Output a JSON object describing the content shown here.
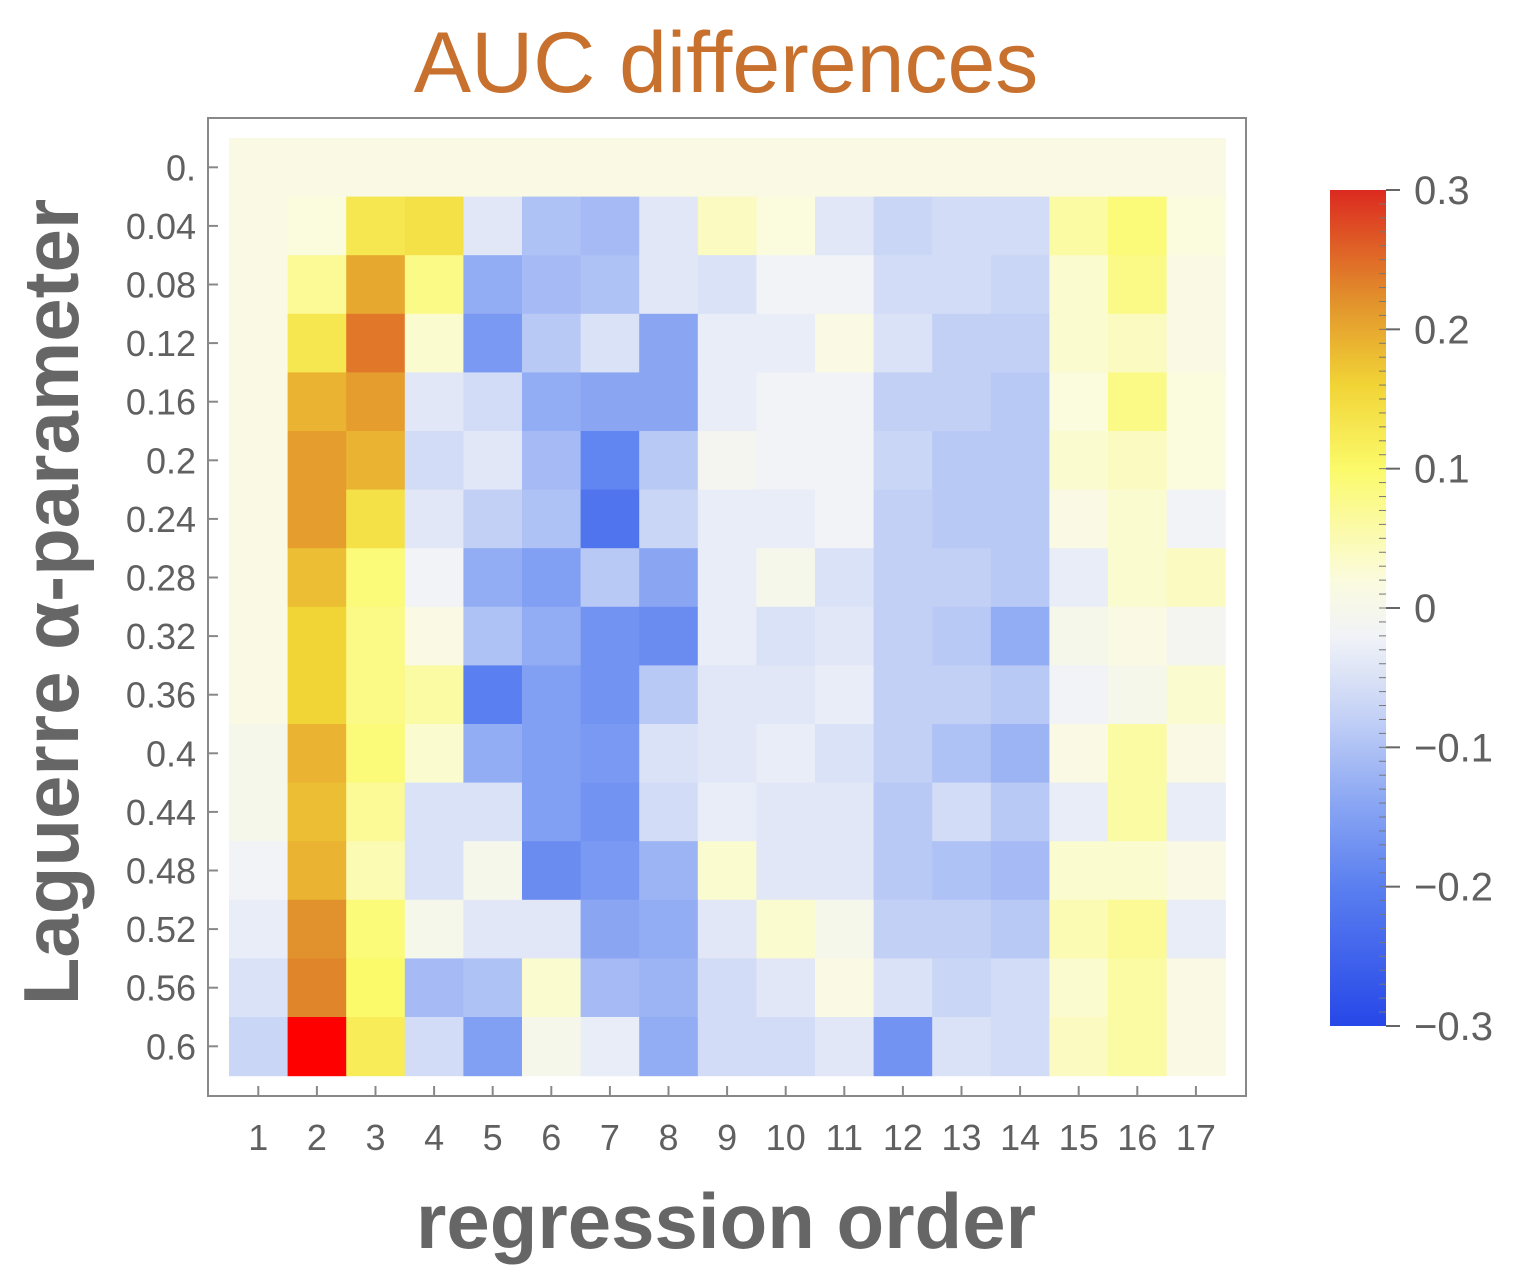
{
  "chart_data": {
    "type": "heatmap",
    "title": "AUC differences",
    "xlabel": "regression order",
    "ylabel": "Laguerre α-parameter",
    "x_categories": [
      "1",
      "2",
      "3",
      "4",
      "5",
      "6",
      "7",
      "8",
      "9",
      "10",
      "11",
      "12",
      "13",
      "14",
      "15",
      "16",
      "17"
    ],
    "y_categories": [
      "0.",
      "0.04",
      "0.08",
      "0.12",
      "0.16",
      "0.2",
      "0.24",
      "0.28",
      "0.32",
      "0.36",
      "0.4",
      "0.44",
      "0.48",
      "0.52",
      "0.56",
      "0.6"
    ],
    "values": [
      [
        0.01,
        0.01,
        0.01,
        0.01,
        0.01,
        0.01,
        0.01,
        0.01,
        0.01,
        0.01,
        0.01,
        0.01,
        0.01,
        0.01,
        0.01,
        0.01,
        0.01
      ],
      [
        0.01,
        0.02,
        0.13,
        0.14,
        -0.04,
        -0.1,
        -0.11,
        -0.04,
        0.04,
        0.02,
        -0.04,
        -0.07,
        -0.06,
        -0.06,
        0.06,
        0.09,
        0.02
      ],
      [
        0.01,
        0.07,
        0.2,
        0.08,
        -0.13,
        -0.11,
        -0.1,
        -0.04,
        -0.05,
        -0.02,
        -0.02,
        -0.06,
        -0.06,
        -0.07,
        0.03,
        0.08,
        0.01
      ],
      [
        0.01,
        0.13,
        0.24,
        0.03,
        -0.16,
        -0.09,
        -0.05,
        -0.14,
        -0.03,
        -0.03,
        0.01,
        -0.05,
        -0.08,
        -0.08,
        0.03,
        0.04,
        0.01
      ],
      [
        0.01,
        0.19,
        0.21,
        -0.04,
        -0.06,
        -0.13,
        -0.14,
        -0.14,
        -0.03,
        -0.02,
        -0.02,
        -0.08,
        -0.08,
        -0.09,
        0.02,
        0.08,
        0.02
      ],
      [
        0.01,
        0.21,
        0.19,
        -0.06,
        -0.04,
        -0.11,
        -0.19,
        -0.09,
        -0.01,
        -0.02,
        -0.02,
        -0.07,
        -0.09,
        -0.09,
        0.03,
        0.04,
        0.02
      ],
      [
        0.01,
        0.21,
        0.14,
        -0.04,
        -0.08,
        -0.1,
        -0.22,
        -0.07,
        -0.03,
        -0.03,
        -0.02,
        -0.08,
        -0.09,
        -0.09,
        0.01,
        0.03,
        -0.02
      ],
      [
        0.01,
        0.18,
        0.09,
        -0.02,
        -0.13,
        -0.15,
        -0.09,
        -0.14,
        -0.03,
        0.0,
        -0.05,
        -0.08,
        -0.08,
        -0.09,
        -0.03,
        0.03,
        0.04
      ],
      [
        0.01,
        0.16,
        0.08,
        0.01,
        -0.1,
        -0.13,
        -0.17,
        -0.18,
        -0.03,
        -0.05,
        -0.04,
        -0.08,
        -0.09,
        -0.13,
        0.0,
        0.01,
        -0.01
      ],
      [
        0.01,
        0.16,
        0.08,
        0.06,
        -0.2,
        -0.15,
        -0.17,
        -0.09,
        -0.04,
        -0.04,
        -0.03,
        -0.08,
        -0.08,
        -0.09,
        -0.02,
        0.0,
        0.03
      ],
      [
        0.0,
        0.19,
        0.09,
        0.03,
        -0.13,
        -0.15,
        -0.16,
        -0.05,
        -0.04,
        -0.03,
        -0.05,
        -0.08,
        -0.1,
        -0.12,
        0.01,
        0.06,
        0.01
      ],
      [
        0.0,
        0.18,
        0.07,
        -0.05,
        -0.05,
        -0.15,
        -0.17,
        -0.06,
        -0.03,
        -0.04,
        -0.04,
        -0.09,
        -0.06,
        -0.09,
        -0.03,
        0.06,
        -0.03
      ],
      [
        -0.02,
        0.19,
        0.05,
        -0.05,
        0.0,
        -0.18,
        -0.16,
        -0.12,
        0.03,
        -0.04,
        -0.04,
        -0.09,
        -0.1,
        -0.11,
        0.03,
        0.03,
        0.01
      ],
      [
        -0.03,
        0.22,
        0.09,
        0.0,
        -0.04,
        -0.04,
        -0.14,
        -0.13,
        -0.04,
        0.03,
        0.0,
        -0.08,
        -0.08,
        -0.09,
        0.05,
        0.07,
        -0.03
      ],
      [
        -0.05,
        0.23,
        0.1,
        -0.11,
        -0.1,
        0.03,
        -0.11,
        -0.12,
        -0.06,
        -0.04,
        0.01,
        -0.05,
        -0.07,
        -0.06,
        0.03,
        0.06,
        0.01
      ],
      [
        -0.07,
        0.31,
        0.12,
        -0.06,
        -0.15,
        0.0,
        -0.03,
        -0.13,
        -0.06,
        -0.06,
        -0.04,
        -0.17,
        -0.05,
        -0.06,
        0.04,
        0.06,
        0.01
      ]
    ],
    "colorbar": {
      "min": -0.3,
      "max": 0.3,
      "tick_labels": [
        "0.3",
        "0.2",
        "0.1",
        "0",
        "−0.1",
        "−0.2",
        "−0.3"
      ],
      "tick_values": [
        0.3,
        0.2,
        0.1,
        0,
        -0.1,
        -0.2,
        -0.3
      ],
      "colors": [
        "#2747e8",
        "#5a7ff0",
        "#8aa6f3",
        "#c2d0f6",
        "#f1f3f7",
        "#fbfbde",
        "#fbfa6a",
        "#f1d436",
        "#e2922c",
        "#dc2a20"
      ],
      "color_stops": [
        -0.3,
        -0.2,
        -0.14,
        -0.08,
        -0.02,
        0.02,
        0.1,
        0.16,
        0.22,
        0.3
      ]
    },
    "legend_position": "right",
    "colors": {
      "title": "#c8712e",
      "axis_text": "#666666",
      "frame": "#888888"
    }
  }
}
